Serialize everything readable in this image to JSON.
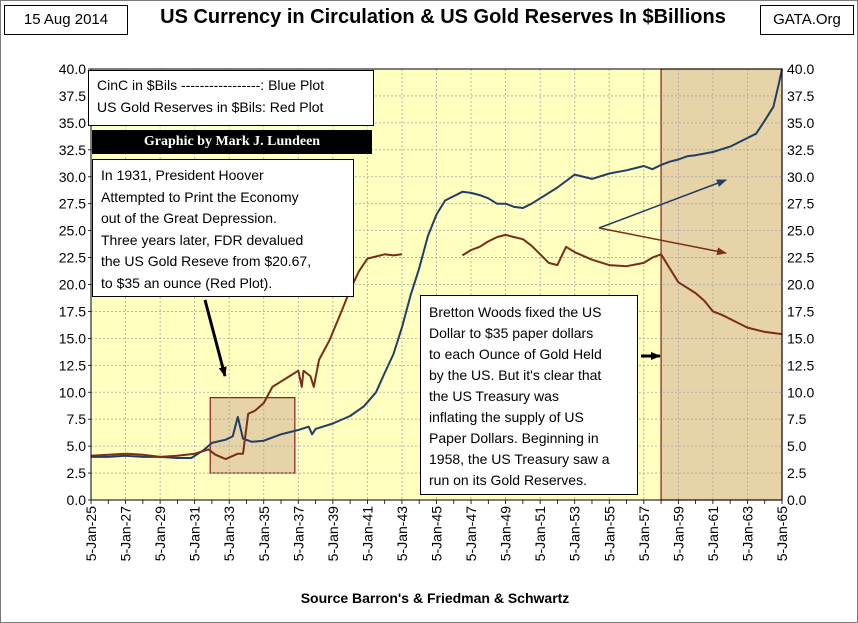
{
  "header": {
    "date": "15 Aug 2014",
    "title": "US Currency in Circulation & US Gold Reserves In $Billions",
    "site": "GATA.Org"
  },
  "legend": {
    "line1": "CinC in $Bils -----------------: Blue Plot",
    "line2": "US Gold Reserves in $Bils:  Red Plot"
  },
  "credit": "Graphic by Mark J. Lundeen",
  "annotations": {
    "hoover_lines": [
      "In 1931, President Hoover",
      "Attempted to Print the Economy",
      "out of the Great Depression.",
      "Three years later, FDR devalued",
      "the US Gold Reseve from $20.67,",
      "to $35 an ounce (Red Plot)."
    ],
    "bretton_lines": [
      "Bretton Woods fixed the US",
      "Dollar to $35 paper dollars",
      "to each Ounce of Gold Held",
      "by the US.  But it's clear that",
      "the US Treasury was",
      "inflating the supply of US",
      "Paper Dollars.  Beginning in",
      "1958, the US Treasury saw a",
      "run on its Gold Reserves."
    ]
  },
  "source": "Source Barron's & Friedman & Schwartz",
  "colors": {
    "plot_bg": "#ffffc0",
    "highlight": "#e6d3a8",
    "highlight_border": "#8b1a1a",
    "currency": "#1f3f66",
    "gold": "#7b2d1c",
    "grid": "#a8a8a8"
  },
  "chart_data": {
    "type": "line",
    "xlabel": "",
    "ylabel": "",
    "x_range": [
      1925,
      1965
    ],
    "ylim": [
      0,
      40
    ],
    "y_ticks": [
      "0.0",
      "2.5",
      "5.0",
      "7.5",
      "10.0",
      "12.5",
      "15.0",
      "17.5",
      "20.0",
      "22.5",
      "25.0",
      "27.5",
      "30.0",
      "32.5",
      "35.0",
      "37.5",
      "40.0"
    ],
    "x_tick_labels": [
      "5-Jan-25",
      "5-Jan-27",
      "5-Jan-29",
      "5-Jan-31",
      "5-Jan-33",
      "5-Jan-35",
      "5-Jan-37",
      "5-Jan-39",
      "5-Jan-41",
      "5-Jan-43",
      "5-Jan-45",
      "5-Jan-47",
      "5-Jan-49",
      "5-Jan-51",
      "5-Jan-53",
      "5-Jan-55",
      "5-Jan-57",
      "5-Jan-59",
      "5-Jan-61",
      "5-Jan-63",
      "5-Jan-65"
    ],
    "grid": "on",
    "highlight_regions": [
      {
        "x": [
          1931.9,
          1936.8
        ],
        "y": [
          2.5,
          9.5
        ]
      },
      {
        "x": [
          1958.0,
          1965.0
        ],
        "y": [
          0,
          40
        ]
      }
    ],
    "series": [
      {
        "key": "currency",
        "x": [
          1925,
          1926,
          1927,
          1928,
          1929,
          1930,
          1930.8,
          1931.5,
          1932,
          1932.8,
          1933.2,
          1933.5,
          1933.8,
          1934.3,
          1935,
          1936,
          1937,
          1937.6,
          1937.8,
          1938,
          1939,
          1940,
          1940.8,
          1941.5,
          1942,
          1942.5,
          1943,
          1943.5,
          1944,
          1944.5,
          1945,
          1945.5,
          1946,
          1946.5,
          1947,
          1947.5,
          1948,
          1948.5,
          1949,
          1949.5,
          1950,
          1950.5,
          1951,
          1952,
          1953,
          1954,
          1955,
          1956,
          1957,
          1957.5,
          1958,
          1958.5,
          1959,
          1959.5,
          1960,
          1961,
          1962,
          1963,
          1963.5,
          1964,
          1964.5,
          1964.8,
          1965
        ],
        "y": [
          4.0,
          4.0,
          4.1,
          4.0,
          4.0,
          3.9,
          3.9,
          4.6,
          5.3,
          5.6,
          5.9,
          7.7,
          5.7,
          5.4,
          5.5,
          6.1,
          6.5,
          6.8,
          6.1,
          6.6,
          7.1,
          7.8,
          8.7,
          10.0,
          11.8,
          13.5,
          16.0,
          19.0,
          21.5,
          24.5,
          26.5,
          27.8,
          28.2,
          28.6,
          28.5,
          28.3,
          28.0,
          27.5,
          27.5,
          27.2,
          27.1,
          27.5,
          28.0,
          29.0,
          30.2,
          29.8,
          30.3,
          30.6,
          31.0,
          30.7,
          31.1,
          31.4,
          31.6,
          31.9,
          32.0,
          32.3,
          32.8,
          33.6,
          34.0,
          35.2,
          36.5,
          38.5,
          40.0
        ]
      },
      {
        "key": "gold",
        "x": [
          1925,
          1926,
          1927,
          1928,
          1929,
          1930,
          1931,
          1931.8,
          1932.2,
          1932.8,
          1933.5,
          1933.8,
          1934.1,
          1934.5,
          1935,
          1935.5,
          1936,
          1936.5,
          1937,
          1937.2,
          1937.3,
          1937.7,
          1937.9,
          1938.2,
          1938.8,
          1939.5,
          1940,
          1940.5,
          1941,
          1941.5,
          1942,
          1942.5,
          1943
        ],
        "y": [
          4.1,
          4.2,
          4.3,
          4.2,
          4.0,
          4.1,
          4.3,
          4.7,
          4.2,
          3.8,
          4.3,
          4.3,
          8.0,
          8.3,
          9.0,
          10.5,
          11.0,
          11.5,
          12.0,
          10.5,
          12.0,
          11.5,
          10.5,
          13.0,
          14.8,
          17.5,
          19.5,
          21.2,
          22.4,
          22.6,
          22.8,
          22.7,
          22.8
        ]
      },
      {
        "key": "gold",
        "x": [
          1946.5,
          1947,
          1947.5,
          1948,
          1948.5,
          1949,
          1949.5,
          1950,
          1950.5,
          1951,
          1951.5,
          1952,
          1952.2,
          1952.5,
          1953,
          1954,
          1955,
          1956,
          1957,
          1957.5,
          1958,
          1958.5,
          1959,
          1959.5,
          1960,
          1960.5,
          1961,
          1961.5,
          1962,
          1963,
          1964,
          1965
        ],
        "y": [
          22.7,
          23.2,
          23.5,
          24.0,
          24.4,
          24.6,
          24.4,
          24.2,
          23.6,
          22.8,
          22.0,
          21.8,
          22.5,
          23.5,
          23.0,
          22.3,
          21.8,
          21.7,
          22.0,
          22.5,
          22.8,
          21.5,
          20.2,
          19.7,
          19.2,
          18.5,
          17.5,
          17.2,
          16.8,
          16.0,
          15.6,
          15.4
        ]
      }
    ]
  }
}
